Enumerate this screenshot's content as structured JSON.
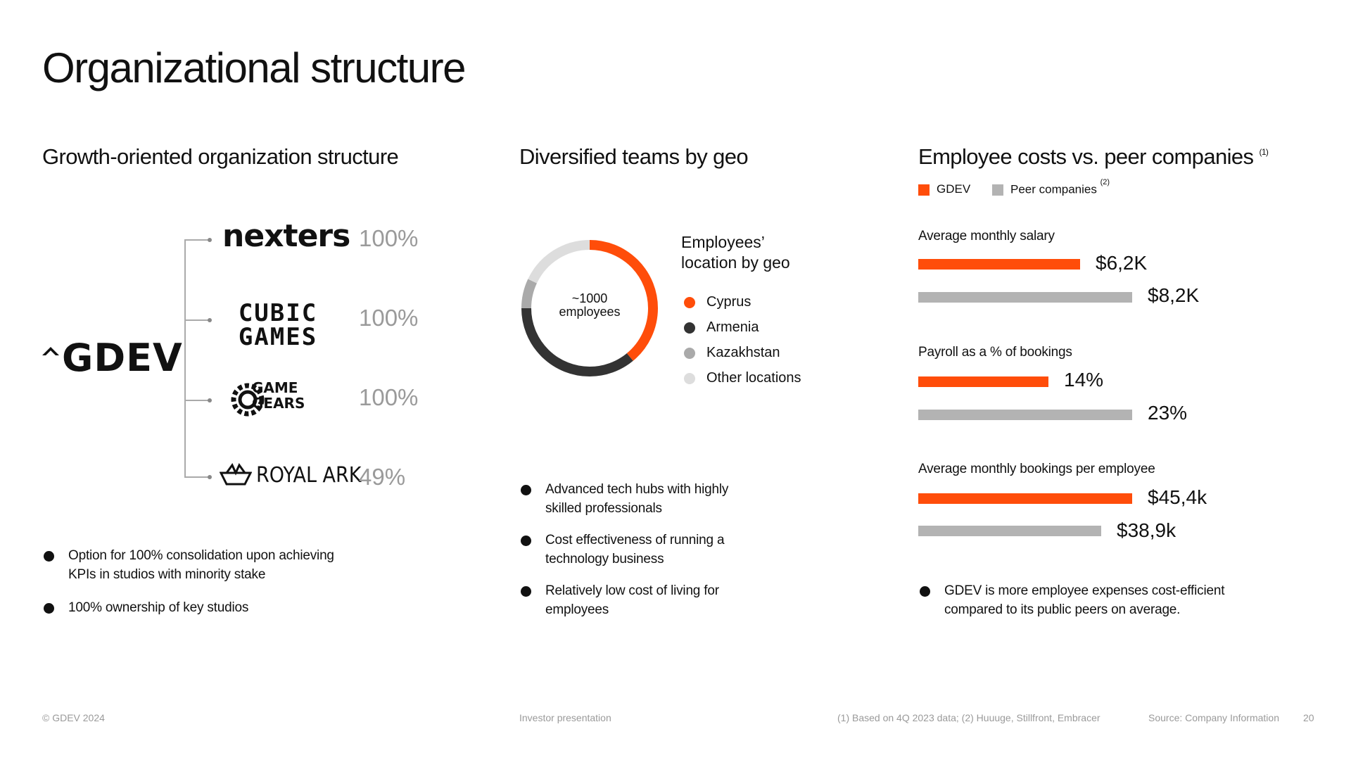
{
  "title": "Organizational structure",
  "sections": {
    "structure": {
      "heading": "Growth-oriented organization structure",
      "parent_logo": "GDEV",
      "studios": [
        {
          "name": "nexters",
          "stake": "100%"
        },
        {
          "name": "CUBIC GAMES",
          "stake": "100%"
        },
        {
          "name": "GAME GEARS",
          "stake": "100%"
        },
        {
          "name": "ROYAL ARK",
          "stake": "49%"
        }
      ],
      "bullets": [
        "Option for 100% consolidation upon achieving KPIs in studios with minority stake",
        "100% ownership of key studios"
      ]
    },
    "geo": {
      "heading": "Diversified teams by geo",
      "donut_center_line1": "~1000",
      "donut_center_line2": "employees",
      "legend_title_line1": "Employees’",
      "legend_title_line2": "location by geo",
      "legend": [
        {
          "label": "Cyprus",
          "color": "#ff4d0a"
        },
        {
          "label": "Armenia",
          "color": "#333333"
        },
        {
          "label": "Kazakhstan",
          "color": "#aaaaaa"
        },
        {
          "label": "Other locations",
          "color": "#dddddd"
        }
      ],
      "bullets": [
        "Advanced tech hubs with highly skilled professionals",
        "Cost effectiveness of running a technology business",
        "Relatively low cost of living for employees"
      ]
    },
    "costs": {
      "heading": "Employee costs vs. peer companies",
      "heading_note": "(1)",
      "key_gdev": "GDEV",
      "key_peer": "Peer companies",
      "key_peer_note": "(2)",
      "colors": {
        "gdev": "#ff4d0a",
        "peer": "#b3b3b3"
      },
      "bullet": "GDEV is more employee expenses cost-efficient compared to its public peers on average."
    }
  },
  "chart_data": [
    {
      "type": "pie",
      "categories": [
        "Cyprus",
        "Armenia",
        "Kazakhstan",
        "Other locations"
      ],
      "values": [
        0.39,
        0.36,
        0.07,
        0.18
      ],
      "title": "Employees’ location by geo"
    },
    {
      "type": "bar",
      "title": "Average monthly salary",
      "categories": [
        "GDEV",
        "Peer companies"
      ],
      "values": [
        6.2,
        8.2
      ],
      "labels": [
        "$6,2K",
        "$8,2K"
      ]
    },
    {
      "type": "bar",
      "title": "Payroll as a % of bookings",
      "categories": [
        "GDEV",
        "Peer companies"
      ],
      "values": [
        14,
        23
      ],
      "labels": [
        "14%",
        "23%"
      ]
    },
    {
      "type": "bar",
      "title": "Average monthly bookings per employee",
      "categories": [
        "GDEV",
        "Peer companies"
      ],
      "values": [
        45.4,
        38.9
      ],
      "labels": [
        "$45,4k",
        "$38,9k"
      ]
    }
  ],
  "footer": {
    "copyright": "© GDEV 2024",
    "center": "Investor presentation",
    "notes": "(1) Based on 4Q 2023 data; (2) Huuuge, Stillfront, Embracer",
    "source": "Source: Company Information",
    "page": "20"
  }
}
